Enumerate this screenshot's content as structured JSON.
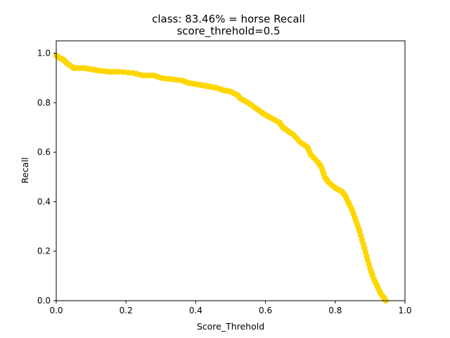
{
  "chart_data": {
    "type": "line",
    "title_lines": [
      "class: 83.46% = horse Recall",
      "score_threhold=0.5"
    ],
    "xlabel": "Score_Threhold",
    "ylabel": "Recall",
    "xlim": [
      0,
      1
    ],
    "ylim": [
      0,
      1.05
    ],
    "x_ticks": [
      0.0,
      0.2,
      0.4,
      0.6,
      0.8,
      1.0
    ],
    "x_tick_labels": [
      "0.0",
      "0.2",
      "0.4",
      "0.6",
      "0.8",
      "1.0"
    ],
    "y_ticks": [
      0.0,
      0.2,
      0.4,
      0.6,
      0.8,
      1.0
    ],
    "y_tick_labels": [
      "0.0",
      "0.2",
      "0.4",
      "0.6",
      "0.8",
      "1.0"
    ],
    "grid": false,
    "series": [
      {
        "color": "#ffd700",
        "marker": "circle",
        "x": [
          0.0,
          0.01,
          0.02,
          0.03,
          0.04,
          0.05,
          0.06,
          0.08,
          0.1,
          0.12,
          0.15,
          0.18,
          0.22,
          0.25,
          0.28,
          0.3,
          0.33,
          0.36,
          0.38,
          0.4,
          0.42,
          0.44,
          0.46,
          0.48,
          0.5,
          0.52,
          0.53,
          0.55,
          0.57,
          0.59,
          0.6,
          0.62,
          0.64,
          0.65,
          0.66,
          0.68,
          0.7,
          0.72,
          0.73,
          0.75,
          0.76,
          0.77,
          0.78,
          0.8,
          0.82,
          0.83,
          0.84,
          0.85,
          0.86,
          0.87,
          0.88,
          0.89,
          0.9,
          0.91,
          0.92,
          0.93,
          0.94,
          0.945
        ],
        "y": [
          0.99,
          0.98,
          0.975,
          0.96,
          0.95,
          0.94,
          0.94,
          0.94,
          0.935,
          0.93,
          0.925,
          0.925,
          0.92,
          0.91,
          0.91,
          0.9,
          0.895,
          0.89,
          0.88,
          0.875,
          0.87,
          0.865,
          0.86,
          0.85,
          0.845,
          0.83,
          0.815,
          0.8,
          0.78,
          0.76,
          0.75,
          0.735,
          0.72,
          0.7,
          0.69,
          0.67,
          0.64,
          0.62,
          0.59,
          0.56,
          0.54,
          0.5,
          0.48,
          0.455,
          0.44,
          0.42,
          0.39,
          0.36,
          0.32,
          0.28,
          0.23,
          0.18,
          0.13,
          0.09,
          0.06,
          0.03,
          0.01,
          0.0
        ]
      }
    ]
  }
}
